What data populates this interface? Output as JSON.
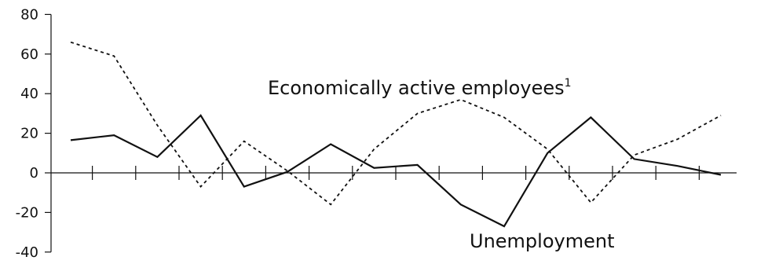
{
  "chart_data": {
    "type": "line",
    "title": "",
    "xlabel": "",
    "ylabel": "",
    "ylim": [
      -40,
      80
    ],
    "yticks": [
      80,
      60,
      40,
      20,
      0,
      -20,
      -40
    ],
    "ytick_labels": [
      "80",
      "60",
      "40",
      "20",
      "0",
      "-20",
      "-40"
    ],
    "x": [
      1,
      2,
      3,
      4,
      5,
      6,
      7,
      8,
      9,
      10,
      11,
      12,
      13,
      14,
      15,
      16
    ],
    "grid": false,
    "legend": "none",
    "series": [
      {
        "name": "Economically active employees",
        "name_superscript": "1",
        "style": "dashed",
        "color": "#111111",
        "values": [
          66,
          59,
          24,
          -7,
          16,
          1,
          -16,
          12,
          30,
          37,
          28,
          12,
          -15,
          9,
          17,
          29
        ]
      },
      {
        "name": "Unemployment",
        "style": "solid",
        "color": "#111111",
        "values": [
          16.5,
          19,
          8,
          29,
          -7,
          0.5,
          14.5,
          2.5,
          4,
          -16,
          -27,
          10,
          28,
          7,
          3.5,
          -1
        ]
      }
    ]
  }
}
